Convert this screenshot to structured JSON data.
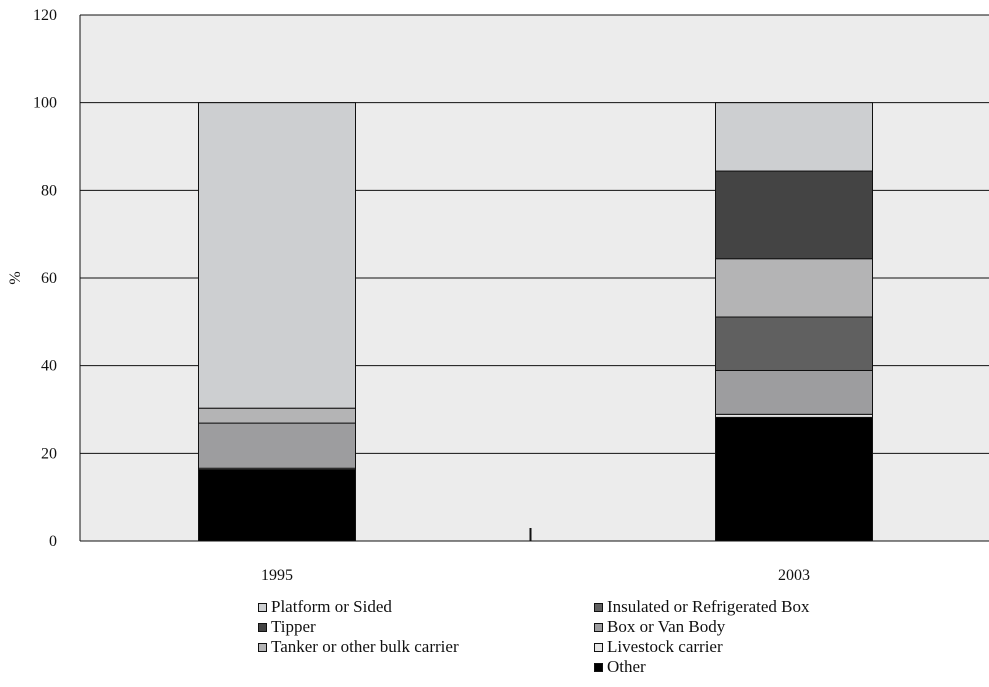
{
  "chart_data": {
    "type": "bar",
    "stacked": true,
    "categories": [
      "1995",
      "2003"
    ],
    "ylabel": "%",
    "ylim": [
      0,
      120
    ],
    "yticks": [
      0,
      20,
      40,
      60,
      80,
      100,
      120
    ],
    "grid": true,
    "legend_position": "bottom",
    "series": [
      {
        "name": "Other",
        "color": "#000000",
        "values": [
          16.3,
          28.2
        ]
      },
      {
        "name": "Livestock carrier",
        "color": "#e6e6e6",
        "values": [
          0.3,
          0.7
        ]
      },
      {
        "name": "Box or Van Body",
        "color": "#9d9d9f",
        "values": [
          10.3,
          10.0
        ]
      },
      {
        "name": "Insulated or Refrigerated Box",
        "color": "#606060",
        "values": [
          0,
          12.2
        ]
      },
      {
        "name": "Tanker or other bulk carrier",
        "color": "#b4b4b5",
        "values": [
          3.4,
          13.3
        ]
      },
      {
        "name": "Tipper",
        "color": "#444444",
        "values": [
          0,
          20.0
        ]
      },
      {
        "name": "Platform or Sided",
        "color": "#cdcfd1",
        "values": [
          69.7,
          15.6
        ]
      }
    ]
  },
  "legend": {
    "left": [
      {
        "label": "Platform or Sided",
        "color": "#cdcfd1"
      },
      {
        "label": "Tipper",
        "color": "#444444"
      },
      {
        "label": "Tanker or other bulk carrier",
        "color": "#b4b4b5"
      }
    ],
    "right": [
      {
        "label": "Insulated or Refrigerated Box",
        "color": "#606060"
      },
      {
        "label": "Box or Van Body",
        "color": "#9d9d9f"
      },
      {
        "label": "Livestock carrier",
        "color": "#e6e6e6"
      },
      {
        "label": "Other",
        "color": "#000000"
      }
    ]
  }
}
